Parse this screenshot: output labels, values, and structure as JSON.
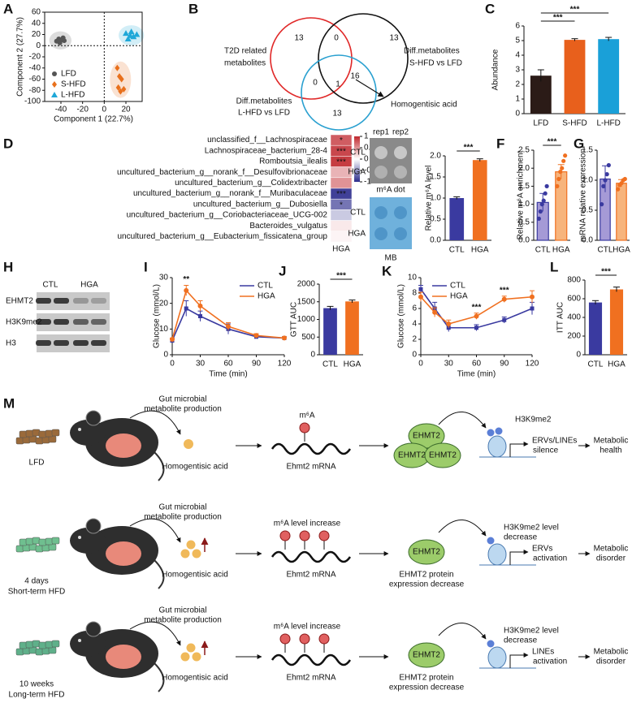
{
  "panel_a": {
    "label": "A",
    "type": "scatter",
    "xlabel": "Component 1 (22.7%)",
    "ylabel": "Component 2 (27.7%)",
    "xlim": [
      -55,
      35
    ],
    "ylim": [
      -100,
      60
    ],
    "xticks": [
      -40,
      -20,
      0,
      20
    ],
    "yticks": [
      60,
      40,
      20,
      0,
      -20,
      -40,
      -60,
      -80,
      -100
    ],
    "series": [
      {
        "name": "LFD",
        "color": "#555555",
        "marker": "circle",
        "x": [
          -44,
          -42,
          -40,
          -38,
          -41,
          -37
        ],
        "y": [
          8,
          12,
          10,
          14,
          5,
          9
        ]
      },
      {
        "name": "S-HFD",
        "color": "#e8701c",
        "marker": "diamond",
        "x": [
          12,
          14,
          16,
          13,
          18,
          15
        ],
        "y": [
          -40,
          -55,
          -60,
          -75,
          -78,
          -82
        ]
      },
      {
        "name": "L-HFD",
        "color": "#1fa8d8",
        "marker": "triangle",
        "x": [
          20,
          24,
          27,
          22,
          30,
          25
        ],
        "y": [
          22,
          18,
          16,
          12,
          20,
          25
        ]
      }
    ]
  },
  "panel_b": {
    "label": "B",
    "type": "venn",
    "sets": [
      {
        "name": [
          "T2D related",
          "metabolites"
        ],
        "color": "#e02828"
      },
      {
        "name": [
          "Diff.metabolites",
          "S-HFD vs LFD"
        ],
        "color": "#111111"
      },
      {
        "name": [
          "Diff.metabolites",
          "L-HFD vs LFD"
        ],
        "color": "#2aa0d0"
      }
    ],
    "regions": {
      "t2d_only": 13,
      "t2d_s": 0,
      "s_only": 13,
      "t2d_l": 0,
      "all": 1,
      "s_l": 16,
      "l_only": 13
    },
    "callout": "Homogentisic acid",
    "callout_color": "#e02020"
  },
  "panel_c": {
    "label": "C",
    "type": "bar",
    "categories": [
      "LFD",
      "S-HFD",
      "L-HFD"
    ],
    "values": [
      2.6,
      5.05,
      5.1
    ],
    "errors": [
      0.4,
      0.08,
      0.12
    ],
    "colors": [
      "#2b1b17",
      "#e8601c",
      "#1aa0d8"
    ],
    "ylabel": "Abundance",
    "ylim": [
      0,
      6
    ],
    "yticks": [
      0,
      1,
      2,
      3,
      4,
      5,
      6
    ],
    "significance": [
      "***",
      "***"
    ]
  },
  "panel_d": {
    "label": "D",
    "type": "heatmap",
    "column": "HGA",
    "colorbar_lim": [
      -1,
      1
    ],
    "colorbar_ticks": [
      1,
      0.5,
      0,
      -0.5,
      -1
    ],
    "rows": [
      {
        "name": "unclassified_f__Lachnospiraceae",
        "value": 0.75,
        "significance": "*"
      },
      {
        "name": "Lachnospiraceae_bacterium_28-4",
        "value": 0.85,
        "significance": "***"
      },
      {
        "name": "Romboutsia_ilealis",
        "value": 0.9,
        "significance": "***"
      },
      {
        "name": "uncultured_bacterium_g__norank_f__Desulfovibrionaceae",
        "value": 0.35
      },
      {
        "name": "uncultured_bacterium_g__Colidextribacter",
        "value": 0.5
      },
      {
        "name": "uncultured_bacterium_g__norank_f__Muribaculaceae",
        "value": -0.9,
        "significance": "***"
      },
      {
        "name": "uncultured_bacterium_g__Dubosiella",
        "value": -0.65,
        "significance": "*"
      },
      {
        "name": "uncultured_bacterium_g__Coriobacteriaceae_UCG-002",
        "value": -0.25
      },
      {
        "name": "Bacteroides_vulgatus",
        "value": 0.1
      },
      {
        "name": "uncultured_bacterium_g__Eubacterium_fissicatena_group",
        "value": 0.05
      }
    ]
  },
  "panel_e": {
    "label": "E",
    "blot": {
      "columns": [
        "rep1",
        "rep2"
      ],
      "top_rows": [
        "CTL",
        "HGA"
      ],
      "top_caption": "m⁶A dot",
      "bottom_rows": [
        "CTL",
        "HGA"
      ],
      "bottom_caption": "MB"
    },
    "chart": {
      "type": "bar",
      "categories": [
        "CTL",
        "HGA"
      ],
      "values": [
        1.0,
        1.9
      ],
      "errors": [
        0.03,
        0.03
      ],
      "colors": [
        "#3a3aa0",
        "#f07020"
      ],
      "ylabel": "Relative m⁶A level",
      "ylim": [
        0,
        2.0
      ],
      "yticks": [
        {
          "value": 0,
          "label": "0.0"
        },
        0.5,
        {
          "value": 1,
          "label": "1.0"
        },
        1.5,
        {
          "value": 2,
          "label": "2.0"
        }
      ],
      "significance": [
        "***"
      ]
    }
  },
  "panel_f": {
    "label": "F",
    "type": "bar",
    "categories": [
      "CTL",
      "HGA"
    ],
    "values": [
      1.05,
      1.9
    ],
    "errors": [
      0.25,
      0.2
    ],
    "colors": [
      "#a59ad6",
      "#f7b47c"
    ],
    "edge_colors": [
      "#3a3aa0",
      "#f07020"
    ],
    "points": [
      [
        0.6,
        0.8,
        1.0,
        1.1,
        1.3,
        1.5
      ],
      [
        1.5,
        1.7,
        1.9,
        2.0,
        2.2,
        2.35
      ]
    ],
    "ylabel": "Relative m⁶A enrichment",
    "ylim": [
      0,
      2.5
    ],
    "yticks": [
      {
        "value": 0,
        "label": "0.0"
      },
      0.5,
      {
        "value": 1,
        "label": "1.0"
      },
      1.5,
      {
        "value": 2,
        "label": "2.0"
      },
      2.5
    ],
    "significance": [
      "***"
    ]
  },
  "panel_g": {
    "label": "G",
    "type": "bar",
    "categories": [
      "CTL",
      "HGA"
    ],
    "values": [
      1.02,
      0.95
    ],
    "errors": [
      0.22,
      0.06
    ],
    "colors": [
      "#a59ad6",
      "#f7b47c"
    ],
    "edge_colors": [
      "#3a3aa0",
      "#f07020"
    ],
    "points": [
      [
        0.6,
        0.9,
        1.0,
        1.1,
        1.25
      ],
      [
        0.85,
        0.92,
        0.95,
        1.0,
        1.02
      ]
    ],
    "ylabel": "mRNA relative expression",
    "ylim": [
      0,
      1.5
    ],
    "yticks": [
      {
        "value": 0,
        "label": "0.0"
      },
      0.5,
      {
        "value": 1,
        "label": "1.0"
      },
      1.5
    ]
  },
  "panel_h": {
    "label": "H",
    "lanes": [
      "CTL",
      "HGA"
    ],
    "rows": [
      "EHMT2",
      "H3K9me2",
      "H3"
    ]
  },
  "panel_i": {
    "label": "I",
    "type": "line",
    "xlabel": "Time (min)",
    "ylabel": "Glucose (mmol/L)",
    "legend": "upper right",
    "x": [
      0,
      15,
      30,
      60,
      90,
      120
    ],
    "xlim": [
      0,
      120
    ],
    "xticks": [
      0,
      30,
      60,
      90,
      120
    ],
    "ylim": [
      0,
      30
    ],
    "yticks": [
      0,
      10,
      20,
      30
    ],
    "series": [
      {
        "name": "CTL",
        "color": "#3a3aa0",
        "values": [
          5.5,
          18,
          15,
          10,
          7,
          6.5
        ],
        "errors": [
          0.5,
          3,
          2,
          2,
          0.7,
          0.5
        ]
      },
      {
        "name": "HGA",
        "color": "#f07020",
        "values": [
          6,
          25,
          19,
          11,
          7.5,
          6.5
        ],
        "errors": [
          0.5,
          2,
          2,
          1.5,
          0.7,
          0.5
        ]
      }
    ],
    "annotations": [
      {
        "x": 15,
        "label": "**"
      }
    ]
  },
  "panel_j": {
    "label": "J",
    "type": "bar",
    "categories": [
      "CTL",
      "HGA"
    ],
    "values": [
      1320,
      1510
    ],
    "errors": [
      50,
      40
    ],
    "colors": [
      "#3a3aa0",
      "#f07020"
    ],
    "ylabel": "GTT AUC",
    "ylim": [
      0,
      2000
    ],
    "yticks": [
      0,
      500,
      1000,
      1500,
      2000
    ],
    "significance": [
      "***"
    ]
  },
  "panel_k": {
    "label": "K",
    "type": "line",
    "xlabel": "Time (min)",
    "ylabel": "Glucose (mmol/L)",
    "legend": "upper left",
    "x": [
      0,
      15,
      30,
      60,
      90,
      120
    ],
    "xlim": [
      0,
      120
    ],
    "xticks": [
      0,
      30,
      60,
      90,
      120
    ],
    "ylim": [
      0,
      10
    ],
    "yticks": [
      0,
      2,
      4,
      6,
      8,
      10
    ],
    "series": [
      {
        "name": "CTL",
        "color": "#3a3aa0",
        "values": [
          8.5,
          6,
          3.5,
          3.5,
          4.5,
          6
        ],
        "errors": [
          0.5,
          0.8,
          0.5,
          0.4,
          0.4,
          0.8
        ]
      },
      {
        "name": "HGA",
        "color": "#f07020",
        "values": [
          7.5,
          5.5,
          4,
          5,
          7.2,
          7.5
        ],
        "errors": [
          0.6,
          0.6,
          0.5,
          0.4,
          0.4,
          0.8
        ]
      }
    ],
    "annotations": [
      {
        "x": 60,
        "label": "***"
      },
      {
        "x": 90,
        "label": "***"
      }
    ]
  },
  "panel_l": {
    "label": "L",
    "type": "bar",
    "categories": [
      "CTL",
      "HGA"
    ],
    "values": [
      560,
      700
    ],
    "errors": [
      20,
      25
    ],
    "colors": [
      "#3a3aa0",
      "#f07020"
    ],
    "ylabel": "ITT AUC",
    "ylim": [
      0,
      800
    ],
    "yticks": [
      0,
      200,
      400,
      600,
      800
    ],
    "significance": [
      "***"
    ]
  },
  "panel_m": {
    "label": "M",
    "rows": [
      {
        "diet": [
          "LFD"
        ],
        "diet_color": "#9a6a3a",
        "production": [
          "Gut microbial",
          "metabolite production"
        ],
        "metabolite": "Homogentisic acid",
        "m6a": "m⁶A",
        "mrna": "Ehmt2 mRNA",
        "protein": [
          "EHMT2",
          "EHMT2",
          "EHMT2"
        ],
        "mark": [
          "H3K9me2"
        ],
        "target": "ERVs/LINEs",
        "target_color": "#111111",
        "action": "silence",
        "outcome": [
          "Metabolic",
          "health"
        ],
        "outcome_color": "#111111"
      },
      {
        "diet": [
          "4 days",
          "Short-term HFD"
        ],
        "diet_color": "#6fbf8f",
        "production": [
          "Gut microbial",
          "metabolite production"
        ],
        "metabolite": "Homogentisic acid",
        "m6a": "m⁶A level increase",
        "mrna": "Ehmt2 mRNA",
        "protein": [
          "EHMT2"
        ],
        "protein_note": [
          "EHMT2 protein",
          "expression  decrease"
        ],
        "mark": [
          "H3K9me2 level",
          "decrease"
        ],
        "target": "ERVs",
        "target_color": "#e02020",
        "action": "activation",
        "outcome": [
          "Metabolic",
          "disorder"
        ],
        "outcome_color": "#e02020"
      },
      {
        "diet": [
          "10 weeks",
          "Long-term HFD"
        ],
        "diet_color": "#5fb08a",
        "production": [
          "Gut microbial",
          "metabolite production"
        ],
        "metabolite": "Homogentisic acid",
        "m6a": "m⁶A level increase",
        "mrna": "Ehmt2 mRNA",
        "protein": [
          "EHMT2"
        ],
        "protein_note": [
          "EHMT2 protein",
          "expression  decrease"
        ],
        "mark": [
          "H3K9me2 level",
          "decrease"
        ],
        "target": "LINEs",
        "target_color": "#e02020",
        "action": "activation",
        "outcome": [
          "Metabolic",
          "disorder"
        ],
        "outcome_color": "#e02020"
      }
    ]
  }
}
